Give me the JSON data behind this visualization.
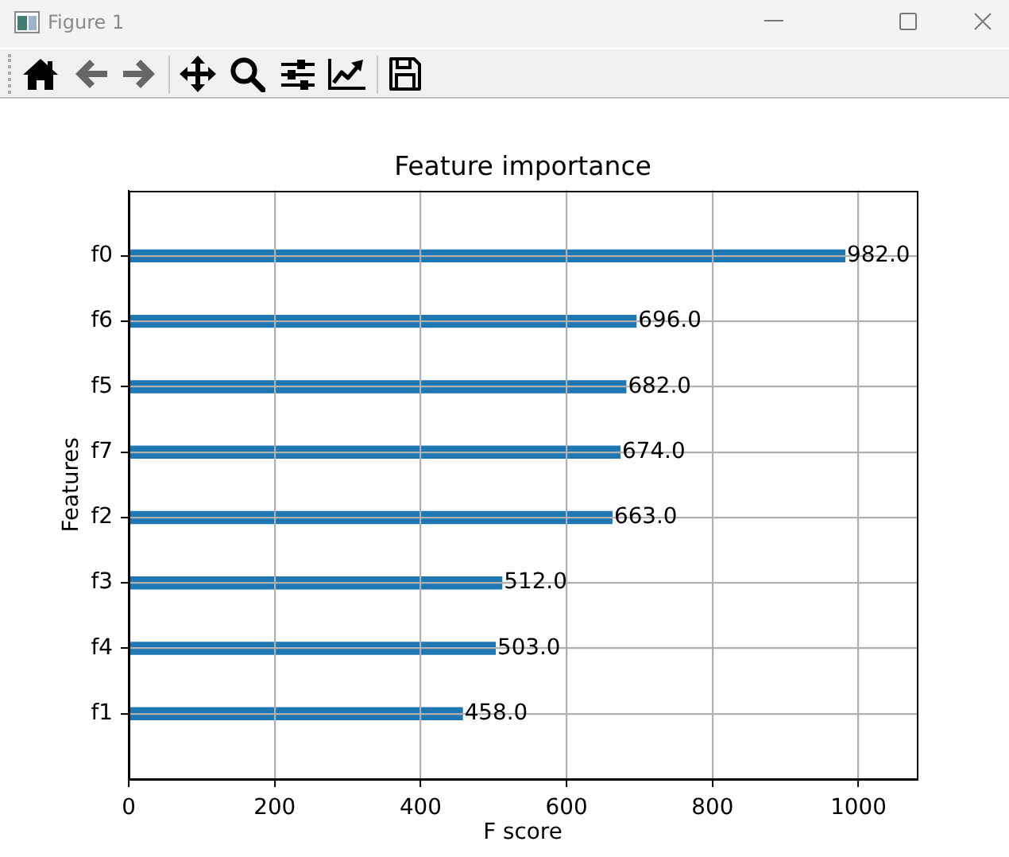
{
  "chart_data": {
    "type": "bar",
    "orientation": "horizontal",
    "title": "Feature importance",
    "xlabel": "F score",
    "ylabel": "Features",
    "categories": [
      "f0",
      "f6",
      "f5",
      "f7",
      "f2",
      "f3",
      "f4",
      "f1"
    ],
    "values": [
      982,
      696,
      682,
      674,
      663,
      512,
      503,
      458
    ],
    "value_labels": [
      "982.0",
      "696.0",
      "682.0",
      "674.0",
      "663.0",
      "512.0",
      "503.0",
      "458.0"
    ],
    "color": "#1f77b4",
    "xlim": [
      0,
      1080
    ],
    "xticks": [
      0,
      200,
      400,
      600,
      800,
      1000
    ],
    "grid": true,
    "annotations": [
      "Figure 1"
    ]
  }
}
